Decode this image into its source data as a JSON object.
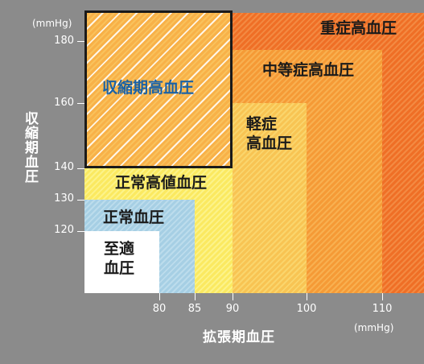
{
  "chart_data": {
    "type": "region-diagram",
    "x_axis": {
      "title": "拡張期血圧",
      "unit": "(mmHg)",
      "ticks": [
        80,
        85,
        90,
        100,
        110
      ]
    },
    "y_axis": {
      "title": "収縮期血圧",
      "unit": "(mmHg)",
      "ticks": [
        120,
        130,
        140,
        160,
        180
      ]
    },
    "regions": [
      {
        "id": "severe",
        "label": "重症高血圧",
        "color": "#f07a30"
      },
      {
        "id": "moderate",
        "label": "中等症高血圧",
        "color": "#f6a43c"
      },
      {
        "id": "mild",
        "label": "軽症\n高血圧",
        "color": "#f9c85a"
      },
      {
        "id": "high-normal",
        "label": "正常高値血圧",
        "color": "#fbee74"
      },
      {
        "id": "normal",
        "label": "正常血圧",
        "color": "#a9d2e6"
      },
      {
        "id": "optimal",
        "label": "至適\n血圧",
        "color": "#ffffff"
      },
      {
        "id": "isolated-systolic",
        "label": "収縮期高血圧",
        "color": "#1a62a6"
      }
    ]
  }
}
